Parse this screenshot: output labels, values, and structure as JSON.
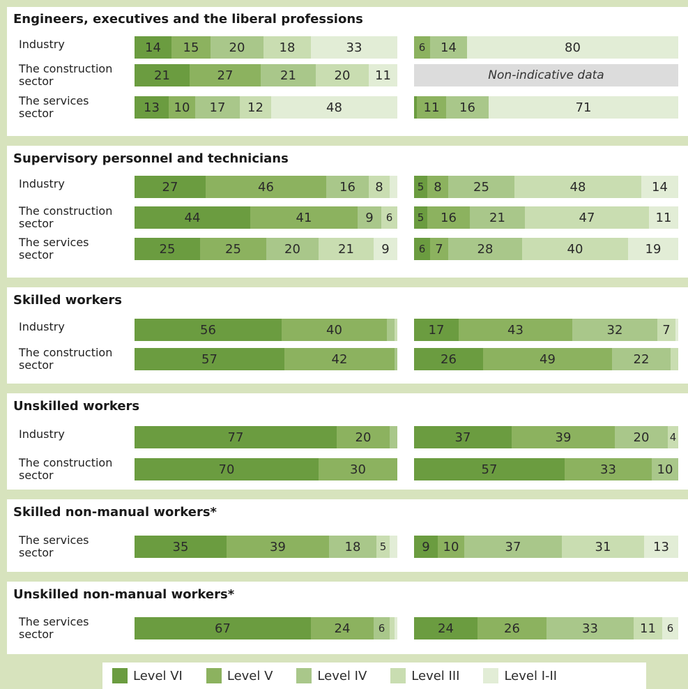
{
  "chart_data": {
    "type": "bar",
    "orientation": "horizontal",
    "stacked": true,
    "percent_scale": [
      0,
      100
    ],
    "levels": [
      "Level VI",
      "Level V",
      "Level IV",
      "Level III",
      "Level I-II"
    ],
    "colors": {
      "Level VI": "#6b9c40",
      "Level V": "#8cb25f",
      "Level IV": "#a9c78a",
      "Level III": "#c9ddb1",
      "Level I-II": "#e2edd6"
    },
    "groups": [
      {
        "title": "Engineers, executives and the liberal professions",
        "rows": [
          {
            "label": "Industry",
            "left": [
              14,
              15,
              20,
              18,
              33
            ],
            "right": [
              0,
              6,
              14,
              0,
              80
            ]
          },
          {
            "label": "The construction\nsector",
            "left": [
              21,
              27,
              21,
              20,
              11
            ],
            "right": null,
            "right_note": "Non-indicative data"
          },
          {
            "label": "The services\nsector",
            "left": [
              13,
              10,
              17,
              12,
              48
            ],
            "right": [
              1,
              11,
              16,
              0,
              71
            ]
          }
        ]
      },
      {
        "title": "Supervisory personnel and technicians",
        "rows": [
          {
            "label": "Industry",
            "left": [
              27,
              46,
              16,
              8,
              3
            ],
            "right": [
              5,
              8,
              25,
              48,
              14
            ]
          },
          {
            "label": "The construction\nsector",
            "left": [
              44,
              41,
              9,
              6,
              0
            ],
            "right": [
              5,
              16,
              21,
              47,
              11
            ]
          },
          {
            "label": "The services\nsector",
            "left": [
              25,
              25,
              20,
              21,
              9
            ],
            "right": [
              6,
              7,
              28,
              40,
              19
            ]
          }
        ]
      },
      {
        "title": "Skilled workers",
        "rows": [
          {
            "label": "Industry",
            "left": [
              56,
              40,
              3,
              1,
              0
            ],
            "right": [
              17,
              43,
              32,
              7,
              1
            ]
          },
          {
            "label": "The construction\nsector",
            "left": [
              57,
              42,
              1,
              0,
              0
            ],
            "right": [
              26,
              49,
              22,
              3,
              0
            ]
          }
        ]
      },
      {
        "title": "Unskilled workers",
        "rows": [
          {
            "label": "Industry",
            "left": [
              77,
              20,
              3,
              0,
              0
            ],
            "right": [
              37,
              39,
              20,
              4,
              0
            ]
          },
          {
            "label": "The construction\nsector",
            "left": [
              70,
              30,
              0,
              0,
              0
            ],
            "right": [
              57,
              33,
              10,
              0,
              0
            ]
          }
        ]
      },
      {
        "title": "Skilled non-manual workers*",
        "rows": [
          {
            "label": "The services\nsector",
            "left": [
              35,
              39,
              18,
              5,
              3
            ],
            "right": [
              9,
              10,
              37,
              31,
              13
            ]
          }
        ]
      },
      {
        "title": "Unskilled non-manual workers*",
        "rows": [
          {
            "label": "The services\nsector",
            "left": [
              67,
              24,
              6,
              2,
              1
            ],
            "right": [
              24,
              26,
              33,
              11,
              6
            ]
          }
        ]
      }
    ]
  }
}
